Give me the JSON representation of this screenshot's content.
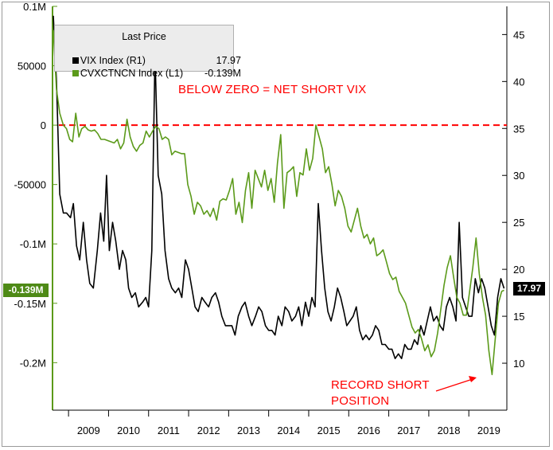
{
  "chart_data": {
    "type": "line",
    "legend": {
      "title": "Last Price",
      "entries": [
        {
          "name": "VIX Index",
          "axis": "(R1)",
          "value": "17.97",
          "color": "#000000"
        },
        {
          "name": "CVXCTNCN Index",
          "axis": "(L1)",
          "value": "-0.139M",
          "color": "#5b9a1a"
        }
      ],
      "placement": "top-left"
    },
    "x_ticks": [
      "2009",
      "2010",
      "2011",
      "2012",
      "2013",
      "2014",
      "2015",
      "2016",
      "2017",
      "2018",
      "2019"
    ],
    "xlim": [
      2008.6,
      2019.95
    ],
    "left_axis": {
      "ticks": [
        "0.1M",
        "50000",
        "0",
        "-50000",
        "-0.1M",
        "-0.15M",
        "-0.2M"
      ],
      "tick_values": [
        100000,
        50000,
        0,
        -50000,
        -100000,
        -150000,
        -200000
      ],
      "ylim": [
        -240000,
        100000
      ],
      "current_tag": "-0.139M",
      "current_value": -139000,
      "color": "#5b9a1a"
    },
    "right_axis": {
      "ticks": [
        "45",
        "40",
        "35",
        "30",
        "25",
        "20",
        "15",
        "10"
      ],
      "tick_values": [
        45,
        40,
        35,
        30,
        25,
        20,
        15,
        10
      ],
      "ylim": [
        5,
        48
      ],
      "current_tag": "17.97",
      "current_value": 17.97,
      "color": "#000000"
    },
    "zero_line": {
      "value": 0,
      "color": "#ff0000",
      "style": "dashed"
    },
    "annotations": [
      {
        "text": "BELOW ZERO = NET SHORT VIX"
      },
      {
        "text": "RECORD SHORT"
      },
      {
        "text": "POSITION"
      }
    ],
    "series": [
      {
        "name": "VIX Index",
        "axis": "right",
        "color": "#000000",
        "points": [
          [
            2008.62,
            47
          ],
          [
            2008.7,
            40
          ],
          [
            2008.78,
            28
          ],
          [
            2008.87,
            26
          ],
          [
            2008.95,
            26
          ],
          [
            2009.05,
            25.5
          ],
          [
            2009.12,
            27
          ],
          [
            2009.2,
            22.5
          ],
          [
            2009.28,
            21
          ],
          [
            2009.37,
            25
          ],
          [
            2009.45,
            21
          ],
          [
            2009.53,
            18.5
          ],
          [
            2009.62,
            18
          ],
          [
            2009.72,
            22
          ],
          [
            2009.8,
            26
          ],
          [
            2009.88,
            23
          ],
          [
            2009.95,
            30
          ],
          [
            2010.02,
            22
          ],
          [
            2010.1,
            25
          ],
          [
            2010.18,
            23
          ],
          [
            2010.27,
            20
          ],
          [
            2010.35,
            22
          ],
          [
            2010.43,
            21
          ],
          [
            2010.5,
            18
          ],
          [
            2010.58,
            17
          ],
          [
            2010.67,
            17.5
          ],
          [
            2010.75,
            16
          ],
          [
            2010.85,
            16.5
          ],
          [
            2010.93,
            17
          ],
          [
            2011.0,
            16
          ],
          [
            2011.08,
            22
          ],
          [
            2011.16,
            43
          ],
          [
            2011.24,
            30
          ],
          [
            2011.33,
            28
          ],
          [
            2011.41,
            22
          ],
          [
            2011.5,
            19
          ],
          [
            2011.58,
            18
          ],
          [
            2011.67,
            17.5
          ],
          [
            2011.75,
            18
          ],
          [
            2011.83,
            17
          ],
          [
            2011.92,
            21
          ],
          [
            2012.0,
            20
          ],
          [
            2012.08,
            18
          ],
          [
            2012.16,
            16
          ],
          [
            2012.24,
            15.5
          ],
          [
            2012.33,
            17
          ],
          [
            2012.41,
            16.5
          ],
          [
            2012.5,
            16
          ],
          [
            2012.58,
            17
          ],
          [
            2012.67,
            17.5
          ],
          [
            2012.75,
            16.5
          ],
          [
            2012.83,
            15
          ],
          [
            2012.92,
            14
          ],
          [
            2013.0,
            14
          ],
          [
            2013.08,
            14
          ],
          [
            2013.16,
            13
          ],
          [
            2013.24,
            15
          ],
          [
            2013.33,
            16
          ],
          [
            2013.41,
            16.5
          ],
          [
            2013.5,
            15
          ],
          [
            2013.58,
            14
          ],
          [
            2013.67,
            15
          ],
          [
            2013.75,
            16
          ],
          [
            2013.83,
            15.5
          ],
          [
            2013.92,
            14
          ],
          [
            2014.0,
            13.5
          ],
          [
            2014.08,
            13.5
          ],
          [
            2014.16,
            13
          ],
          [
            2014.24,
            15
          ],
          [
            2014.33,
            14
          ],
          [
            2014.41,
            16
          ],
          [
            2014.5,
            15.5
          ],
          [
            2014.58,
            14.5
          ],
          [
            2014.67,
            15
          ],
          [
            2014.75,
            16
          ],
          [
            2014.83,
            14
          ],
          [
            2014.92,
            16.5
          ],
          [
            2015.0,
            15
          ],
          [
            2015.08,
            17
          ],
          [
            2015.16,
            16
          ],
          [
            2015.24,
            27
          ],
          [
            2015.32,
            22
          ],
          [
            2015.4,
            18
          ],
          [
            2015.48,
            15.5
          ],
          [
            2015.56,
            14.5
          ],
          [
            2015.64,
            16
          ],
          [
            2015.72,
            18
          ],
          [
            2015.8,
            17
          ],
          [
            2015.88,
            15.5
          ],
          [
            2015.95,
            14
          ],
          [
            2016.03,
            14.5
          ],
          [
            2016.11,
            15
          ],
          [
            2016.19,
            16
          ],
          [
            2016.27,
            13.5
          ],
          [
            2016.35,
            12.5
          ],
          [
            2016.43,
            13
          ],
          [
            2016.51,
            12.5
          ],
          [
            2016.59,
            13
          ],
          [
            2016.67,
            14
          ],
          [
            2016.75,
            13.5
          ],
          [
            2016.83,
            12
          ],
          [
            2016.91,
            12
          ],
          [
            2017.0,
            11.5
          ],
          [
            2017.08,
            11.5
          ],
          [
            2017.16,
            10.5
          ],
          [
            2017.24,
            11
          ],
          [
            2017.32,
            10.5
          ],
          [
            2017.4,
            12
          ],
          [
            2017.48,
            11.5
          ],
          [
            2017.56,
            11.5
          ],
          [
            2017.64,
            12.5
          ],
          [
            2017.72,
            12
          ],
          [
            2017.8,
            14
          ],
          [
            2017.88,
            13
          ],
          [
            2017.96,
            14.5
          ],
          [
            2018.04,
            16
          ],
          [
            2018.12,
            14.5
          ],
          [
            2018.2,
            15
          ],
          [
            2018.28,
            14
          ],
          [
            2018.36,
            13.5
          ],
          [
            2018.44,
            16
          ],
          [
            2018.52,
            17
          ],
          [
            2018.6,
            16
          ],
          [
            2018.68,
            14.5
          ],
          [
            2018.76,
            25
          ],
          [
            2018.84,
            17
          ],
          [
            2018.92,
            16
          ],
          [
            2019.0,
            15
          ],
          [
            2019.08,
            15
          ],
          [
            2019.16,
            19
          ],
          [
            2019.24,
            17.5
          ],
          [
            2019.32,
            19
          ],
          [
            2019.4,
            18
          ],
          [
            2019.48,
            16
          ],
          [
            2019.56,
            14
          ],
          [
            2019.64,
            13
          ],
          [
            2019.72,
            17
          ],
          [
            2019.8,
            19
          ],
          [
            2019.88,
            17.97
          ]
        ]
      },
      {
        "name": "CVXCTNCN Index",
        "axis": "left",
        "color": "#5b9a1a",
        "points": [
          [
            2008.62,
            80000
          ],
          [
            2008.7,
            30000
          ],
          [
            2008.78,
            10000
          ],
          [
            2008.87,
            0
          ],
          [
            2008.95,
            -3000
          ],
          [
            2009.03,
            -12000
          ],
          [
            2009.1,
            -14000
          ],
          [
            2009.18,
            10000
          ],
          [
            2009.26,
            -10000
          ],
          [
            2009.33,
            -3000
          ],
          [
            2009.41,
            -1000
          ],
          [
            2009.49,
            -4000
          ],
          [
            2009.57,
            -5000
          ],
          [
            2009.65,
            -4000
          ],
          [
            2009.73,
            -7000
          ],
          [
            2009.81,
            -12000
          ],
          [
            2009.9,
            -12000
          ],
          [
            2009.98,
            -13000
          ],
          [
            2010.06,
            -14000
          ],
          [
            2010.14,
            -15000
          ],
          [
            2010.22,
            -12000
          ],
          [
            2010.3,
            -20000
          ],
          [
            2010.38,
            -15000
          ],
          [
            2010.46,
            5000
          ],
          [
            2010.54,
            -10000
          ],
          [
            2010.62,
            -18000
          ],
          [
            2010.7,
            -22000
          ],
          [
            2010.78,
            -17000
          ],
          [
            2010.86,
            -15000
          ],
          [
            2010.94,
            -5000
          ],
          [
            2011.02,
            -10000
          ],
          [
            2011.1,
            -5000
          ],
          [
            2011.18,
            -1000
          ],
          [
            2011.26,
            -3000
          ],
          [
            2011.34,
            -12000
          ],
          [
            2011.42,
            -10000
          ],
          [
            2011.5,
            -12000
          ],
          [
            2011.58,
            -25000
          ],
          [
            2011.66,
            -22000
          ],
          [
            2011.74,
            -23000
          ],
          [
            2011.82,
            -24000
          ],
          [
            2011.9,
            -24000
          ],
          [
            2011.98,
            -50000
          ],
          [
            2012.06,
            -60000
          ],
          [
            2012.14,
            -75000
          ],
          [
            2012.22,
            -65000
          ],
          [
            2012.3,
            -68000
          ],
          [
            2012.38,
            -75000
          ],
          [
            2012.46,
            -72000
          ],
          [
            2012.54,
            -77000
          ],
          [
            2012.62,
            -70000
          ],
          [
            2012.7,
            -80000
          ],
          [
            2012.78,
            -64000
          ],
          [
            2012.86,
            -62000
          ],
          [
            2012.94,
            -63000
          ],
          [
            2013.02,
            -55000
          ],
          [
            2013.1,
            -45000
          ],
          [
            2013.18,
            -75000
          ],
          [
            2013.26,
            -65000
          ],
          [
            2013.34,
            -82000
          ],
          [
            2013.42,
            -55000
          ],
          [
            2013.5,
            -40000
          ],
          [
            2013.58,
            -70000
          ],
          [
            2013.66,
            -38000
          ],
          [
            2013.74,
            -45000
          ],
          [
            2013.82,
            -52000
          ],
          [
            2013.9,
            -38000
          ],
          [
            2013.98,
            -55000
          ],
          [
            2014.06,
            -45000
          ],
          [
            2014.14,
            -65000
          ],
          [
            2014.22,
            -32000
          ],
          [
            2014.3,
            -8000
          ],
          [
            2014.38,
            -70000
          ],
          [
            2014.46,
            -40000
          ],
          [
            2014.54,
            -38000
          ],
          [
            2014.62,
            -35000
          ],
          [
            2014.7,
            -60000
          ],
          [
            2014.78,
            -40000
          ],
          [
            2014.86,
            -42000
          ],
          [
            2014.94,
            -20000
          ],
          [
            2015.02,
            -38000
          ],
          [
            2015.1,
            -28000
          ],
          [
            2015.18,
            0
          ],
          [
            2015.26,
            -10000
          ],
          [
            2015.34,
            -20000
          ],
          [
            2015.42,
            -40000
          ],
          [
            2015.5,
            -35000
          ],
          [
            2015.58,
            -50000
          ],
          [
            2015.66,
            -68000
          ],
          [
            2015.74,
            -55000
          ],
          [
            2015.82,
            -60000
          ],
          [
            2015.9,
            -70000
          ],
          [
            2015.98,
            -85000
          ],
          [
            2016.06,
            -90000
          ],
          [
            2016.14,
            -80000
          ],
          [
            2016.22,
            -70000
          ],
          [
            2016.3,
            -85000
          ],
          [
            2016.38,
            -95000
          ],
          [
            2016.46,
            -92000
          ],
          [
            2016.54,
            -100000
          ],
          [
            2016.62,
            -95000
          ],
          [
            2016.7,
            -110000
          ],
          [
            2016.78,
            -108000
          ],
          [
            2016.86,
            -105000
          ],
          [
            2016.94,
            -115000
          ],
          [
            2017.02,
            -125000
          ],
          [
            2017.1,
            -130000
          ],
          [
            2017.18,
            -128000
          ],
          [
            2017.26,
            -140000
          ],
          [
            2017.34,
            -145000
          ],
          [
            2017.42,
            -150000
          ],
          [
            2017.5,
            -160000
          ],
          [
            2017.58,
            -170000
          ],
          [
            2017.66,
            -175000
          ],
          [
            2017.74,
            -172000
          ],
          [
            2017.82,
            -180000
          ],
          [
            2017.9,
            -190000
          ],
          [
            2017.98,
            -185000
          ],
          [
            2018.06,
            -195000
          ],
          [
            2018.14,
            -190000
          ],
          [
            2018.22,
            -175000
          ],
          [
            2018.3,
            -155000
          ],
          [
            2018.38,
            -135000
          ],
          [
            2018.46,
            -120000
          ],
          [
            2018.54,
            -110000
          ],
          [
            2018.62,
            -128000
          ],
          [
            2018.7,
            -145000
          ],
          [
            2018.78,
            -150000
          ],
          [
            2018.86,
            -160000
          ],
          [
            2018.94,
            -160000
          ],
          [
            2019.02,
            -140000
          ],
          [
            2019.1,
            -120000
          ],
          [
            2019.18,
            -95000
          ],
          [
            2019.26,
            -125000
          ],
          [
            2019.34,
            -145000
          ],
          [
            2019.42,
            -160000
          ],
          [
            2019.5,
            -190000
          ],
          [
            2019.58,
            -210000
          ],
          [
            2019.66,
            -180000
          ],
          [
            2019.74,
            -150000
          ],
          [
            2019.82,
            -140000
          ],
          [
            2019.88,
            -139000
          ]
        ]
      }
    ]
  }
}
